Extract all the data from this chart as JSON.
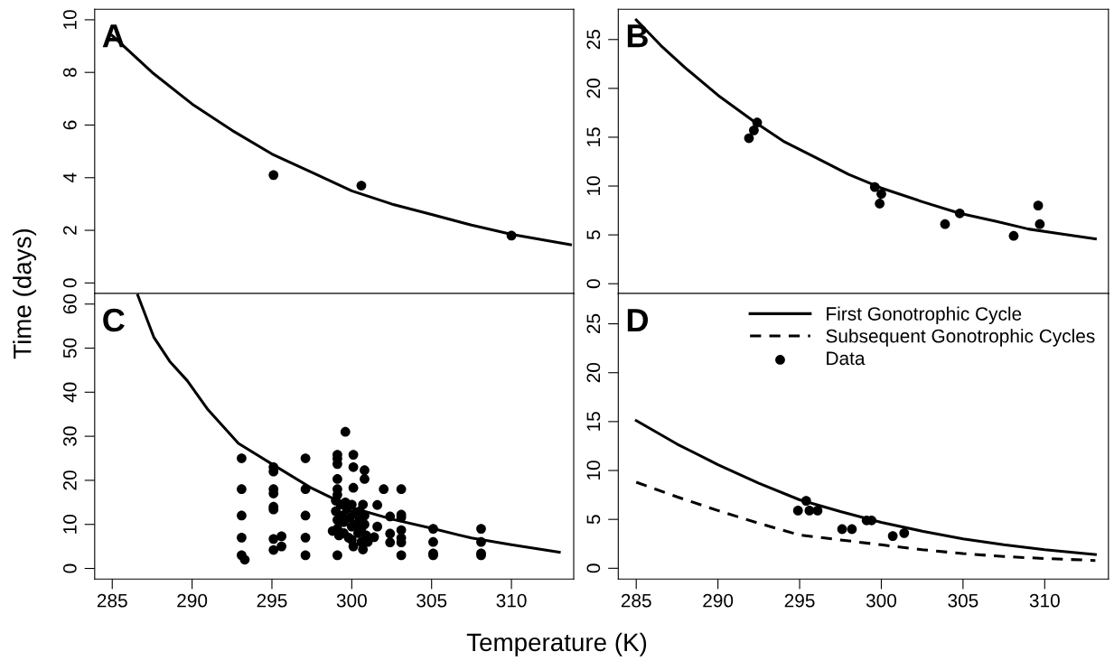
{
  "chart_data": [
    {
      "type": "scatter",
      "ylabel": "Time (days)",
      "annotations": [
        "A"
      ],
      "xlim": [
        283.9,
        313.9
      ],
      "xticks": [
        285,
        290,
        295,
        300,
        305,
        310
      ],
      "ylim": [
        -0.4,
        10.4
      ],
      "yticks": [
        0,
        2,
        4,
        6,
        8,
        10
      ],
      "tick_labels": "y",
      "grid": false,
      "legend": false,
      "series": [
        {
          "type": "line",
          "color": "#000000",
          "line_style": "solid",
          "marker": "none",
          "x": [
            285,
            287.5,
            290,
            292.5,
            295,
            297.5,
            300,
            302.5,
            305,
            307.5,
            310,
            313.7
          ],
          "values": [
            9.4,
            8.0,
            6.8,
            5.8,
            4.9,
            4.2,
            3.5,
            3.0,
            2.6,
            2.2,
            1.85,
            1.45
          ]
        },
        {
          "color": "#000000",
          "marker": "circle",
          "x": [
            295.1,
            300.6,
            310.0
          ],
          "values": [
            4.1,
            3.7,
            1.8
          ]
        }
      ]
    },
    {
      "type": "scatter",
      "annotations": [
        "B"
      ],
      "xlim": [
        283.9,
        313.9
      ],
      "xticks": [
        285,
        290,
        295,
        300,
        305,
        310
      ],
      "ylim": [
        -1.0,
        28.1
      ],
      "yticks": [
        0,
        5,
        10,
        15,
        20,
        25
      ],
      "tick_labels": "y",
      "grid": false,
      "legend": false,
      "series": [
        {
          "type": "line",
          "color": "#000000",
          "line_style": "solid",
          "marker": "none",
          "x": [
            285,
            286.5,
            288,
            290,
            292.3,
            294,
            296,
            298,
            300,
            302.5,
            304.8,
            307,
            309,
            311,
            313.1
          ],
          "values": [
            27.0,
            24.4,
            22.1,
            19.3,
            16.5,
            14.6,
            12.9,
            11.2,
            9.8,
            8.4,
            7.2,
            6.4,
            5.6,
            5.1,
            4.6
          ]
        },
        {
          "color": "#000000",
          "marker": "circle",
          "x": [
            291.9,
            292.2,
            292.4,
            299.6,
            300.0,
            299.9,
            303.9,
            304.8,
            308.1,
            309.6,
            309.7
          ],
          "values": [
            14.9,
            15.7,
            16.5,
            9.9,
            9.2,
            8.2,
            6.1,
            7.2,
            4.9,
            8.0,
            6.1
          ]
        }
      ]
    },
    {
      "type": "scatter",
      "xlabel": "Temperature (K)",
      "annotations": [
        "C"
      ],
      "xlim": [
        283.9,
        313.9
      ],
      "xticks": [
        285,
        290,
        295,
        300,
        305,
        310
      ],
      "ylim": [
        -2.4,
        62.4
      ],
      "yticks": [
        0,
        10,
        20,
        30,
        40,
        50,
        60
      ],
      "grid": false,
      "legend": false,
      "series": [
        {
          "type": "line",
          "color": "#000000",
          "line_style": "solid",
          "marker": "none",
          "x": [
            286.6,
            287.6,
            288.6,
            289.7,
            291,
            292.9,
            295,
            297.5,
            300,
            302.5,
            305,
            307.5,
            310,
            313
          ],
          "values": [
            62,
            52.5,
            47,
            42.6,
            36,
            28.4,
            23.7,
            18.2,
            13.8,
            11.2,
            9.1,
            6.9,
            5.4,
            3.7
          ]
        },
        {
          "color": "#000000",
          "marker": "circle",
          "x": [
            293.1,
            293.1,
            293.1,
            293.1,
            293.1,
            293.3,
            295.1,
            295.1,
            295.1,
            295.1,
            295.1,
            295.1,
            295.1,
            295.1,
            295.6,
            295.6,
            297.1,
            297.1,
            297.1,
            297.1,
            297.1,
            299.1,
            299.1,
            299.1,
            299.1,
            299.1,
            299.1,
            299.1,
            299.6,
            300.1,
            300.1,
            300.1,
            300.8,
            300.8,
            302.0,
            301.6,
            301.6,
            301.4,
            303.1,
            303.1,
            303.1,
            303.1,
            303.1,
            303.1,
            303.1,
            302.4,
            302.4,
            302.4,
            305.1,
            305.1,
            305.1,
            305.1,
            308.1,
            308.1,
            308.1,
            308.1,
            298.8,
            299.0,
            299.0,
            299.1,
            299.1,
            299.2,
            299.3,
            299.4,
            299.5,
            299.5,
            299.6,
            299.7,
            299.8,
            299.9,
            300.0,
            300.0,
            300.0,
            300.1,
            300.2,
            300.3,
            300.4,
            300.5,
            300.5,
            300.6,
            300.6,
            300.7,
            300.7,
            300.8,
            300.8,
            300.9,
            301.0
          ],
          "values": [
            25,
            18,
            12,
            7,
            3,
            2,
            23,
            22,
            18,
            17,
            14,
            13.4,
            6.7,
            4.2,
            7.3,
            5,
            25,
            18,
            12,
            7,
            3,
            25.8,
            24.9,
            23.7,
            20.3,
            18,
            16.7,
            3,
            31,
            25.8,
            23,
            18.3,
            22.3,
            20.3,
            18,
            14.4,
            9.5,
            7.1,
            18,
            12.2,
            11.6,
            8.7,
            6.9,
            5.9,
            3,
            11.8,
            7.9,
            5.9,
            9,
            6,
            3.4,
            3,
            9,
            6,
            3.4,
            3,
            8.5,
            15.4,
            13,
            11,
            9,
            7.5,
            14.5,
            12,
            10.5,
            8,
            15,
            13.5,
            7,
            11.5,
            14.5,
            9.5,
            6.5,
            5,
            12.5,
            10,
            8,
            13,
            11,
            9,
            6,
            4.3,
            14.5,
            12,
            10,
            7.5,
            6
          ]
        }
      ]
    },
    {
      "type": "scatter",
      "annotations": [
        "D"
      ],
      "xlim": [
        283.9,
        313.9
      ],
      "xticks": [
        285,
        290,
        295,
        300,
        305,
        310
      ],
      "ylim": [
        -1.1,
        28.1
      ],
      "yticks": [
        0,
        5,
        10,
        15,
        20,
        25
      ],
      "grid": false,
      "legend": "top right",
      "series": [
        {
          "name": "First Gonotrophic Cycle",
          "type": "line",
          "color": "#000000",
          "line_style": "solid",
          "marker": "none",
          "x": [
            285,
            287.5,
            290,
            292.5,
            295,
            297.5,
            300,
            302.5,
            305,
            307.5,
            310,
            313.1
          ],
          "values": [
            15.1,
            12.7,
            10.6,
            8.7,
            7.0,
            5.8,
            4.7,
            3.8,
            3.0,
            2.4,
            1.9,
            1.4
          ]
        },
        {
          "name": "Subsequent Gonotrophic Cycles",
          "type": "line",
          "color": "#000000",
          "line_style": "dashed",
          "marker": "none",
          "x": [
            285,
            287.5,
            290,
            292.5,
            295,
            297.5,
            300,
            302.5,
            305,
            307.5,
            310,
            313.1
          ],
          "values": [
            8.8,
            7.3,
            5.9,
            4.6,
            3.4,
            2.9,
            2.4,
            1.9,
            1.5,
            1.2,
            1.0,
            0.8
          ]
        },
        {
          "name": "Data",
          "color": "#000000",
          "marker": "circle",
          "x": [
            294.9,
            295.4,
            295.6,
            296.1,
            297.6,
            298.2,
            299.1,
            299.4,
            300.7,
            301.4
          ],
          "values": [
            5.9,
            6.9,
            5.9,
            5.9,
            4.0,
            4.0,
            4.9,
            4.9,
            3.3,
            3.6
          ]
        }
      ]
    }
  ]
}
